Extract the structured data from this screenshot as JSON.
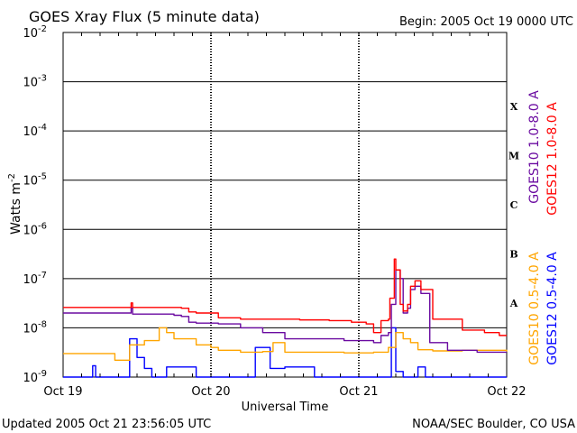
{
  "chart_data": {
    "type": "line",
    "title": "GOES Xray Flux (5 minute data)",
    "begin_label": "Begin:  2005 Oct 19 0000 UTC",
    "xlabel": "Universal Time",
    "ylabel": "Watts m",
    "ylabel_sup": "-2",
    "footer_left": "Updated 2005 Oct 21 23:56:05 UTC",
    "footer_right": "NOAA/SEC Boulder, CO USA",
    "y_scale": "log",
    "ylim": [
      1e-09,
      0.01
    ],
    "xlim": [
      0,
      3
    ],
    "x_ticks": [
      {
        "x": 0,
        "label": "Oct 19"
      },
      {
        "x": 1,
        "label": "Oct 20"
      },
      {
        "x": 2,
        "label": "Oct 21"
      },
      {
        "x": 3,
        "label": "Oct 22"
      }
    ],
    "y_ticks": [
      {
        "exp": -9,
        "base": "10",
        "sup": "-9"
      },
      {
        "exp": -8,
        "base": "10",
        "sup": "-8"
      },
      {
        "exp": -7,
        "base": "10",
        "sup": "-7"
      },
      {
        "exp": -6,
        "base": "10",
        "sup": "-6"
      },
      {
        "exp": -5,
        "base": "10",
        "sup": "-5"
      },
      {
        "exp": -4,
        "base": "10",
        "sup": "-4"
      },
      {
        "exp": -3,
        "base": "10",
        "sup": "-3"
      },
      {
        "exp": -2,
        "base": "10",
        "sup": "-2"
      }
    ],
    "flare_classes": [
      {
        "label": "A",
        "exp": -8
      },
      {
        "label": "B",
        "exp": -7
      },
      {
        "label": "C",
        "exp": -6
      },
      {
        "label": "M",
        "exp": -5
      },
      {
        "label": "X",
        "exp": -4
      }
    ],
    "grid": true,
    "legend_right": [
      {
        "name": "GOES12 1.0-8.0 A",
        "color": "#ff0000"
      },
      {
        "name": "GOES10 1.0-8.0 A",
        "color": "#6a0aa0"
      }
    ],
    "legend_bottom": [
      {
        "name": "GOES12 0.5-4.0 A",
        "color": "#0000ff"
      },
      {
        "name": "GOES10 0.5-4.0 A",
        "color": "#ffa500"
      }
    ],
    "series": [
      {
        "name": "GOES12 1.0-8.0 A",
        "color": "#ff0000",
        "x": [
          0,
          0.45,
          0.46,
          0.47,
          0.8,
          0.85,
          0.9,
          1.0,
          1.05,
          1.2,
          1.4,
          1.6,
          1.8,
          1.95,
          2.05,
          2.1,
          2.15,
          2.2,
          2.21,
          2.24,
          2.25,
          2.28,
          2.3,
          2.33,
          2.35,
          2.38,
          2.42,
          2.5,
          2.7,
          2.85,
          2.95,
          3.0
        ],
        "y": [
          2.6e-08,
          2.6e-08,
          3.2e-08,
          2.6e-08,
          2.5e-08,
          2.1e-08,
          2e-08,
          2e-08,
          1.6e-08,
          1.5e-08,
          1.5e-08,
          1.45e-08,
          1.4e-08,
          1.3e-08,
          1.2e-08,
          8e-09,
          1.4e-08,
          1.5e-08,
          4e-08,
          2.5e-07,
          1.5e-07,
          3e-08,
          2.2e-08,
          3e-08,
          7e-08,
          9e-08,
          6e-08,
          1.5e-08,
          9e-09,
          8e-09,
          7e-09,
          7e-09
        ]
      },
      {
        "name": "GOES10 1.0-8.0 A",
        "color": "#6a0aa0",
        "x": [
          0,
          0.45,
          0.46,
          0.47,
          0.75,
          0.8,
          0.85,
          0.9,
          1.0,
          1.05,
          1.2,
          1.35,
          1.5,
          1.7,
          1.9,
          2.05,
          2.1,
          2.15,
          2.2,
          2.22,
          2.25,
          2.28,
          2.3,
          2.33,
          2.35,
          2.38,
          2.42,
          2.48,
          2.6,
          2.8,
          3.0
        ],
        "y": [
          2e-08,
          2e-08,
          2.5e-08,
          1.9e-08,
          1.8e-08,
          1.7e-08,
          1.3e-08,
          1.25e-08,
          1.25e-08,
          1.2e-08,
          1e-08,
          8e-09,
          6e-09,
          6e-09,
          5.5e-09,
          5.5e-09,
          5e-09,
          7e-09,
          8e-09,
          3e-08,
          1.5e-07,
          1e-07,
          2e-08,
          2.5e-08,
          6e-08,
          7e-08,
          5e-08,
          5e-09,
          3.5e-09,
          3.2e-09,
          3.2e-09
        ]
      },
      {
        "name": "GOES10 0.5-4.0 A",
        "color": "#ffa500",
        "x": [
          0,
          0.2,
          0.3,
          0.35,
          0.45,
          0.55,
          0.6,
          0.65,
          0.7,
          0.75,
          0.9,
          1.0,
          1.05,
          1.2,
          1.35,
          1.42,
          1.5,
          1.7,
          1.9,
          2.0,
          2.1,
          2.2,
          2.25,
          2.3,
          2.35,
          2.4,
          2.5,
          2.7,
          3.0
        ],
        "y": [
          3e-09,
          3e-09,
          3e-09,
          2.2e-09,
          4.5e-09,
          5.5e-09,
          5.5e-09,
          1e-08,
          8e-09,
          6e-09,
          4.5e-09,
          4e-09,
          3.5e-09,
          3.2e-09,
          3.3e-09,
          5e-09,
          3.2e-09,
          3.2e-09,
          3.1e-09,
          3.1e-09,
          3.2e-09,
          4e-09,
          8e-09,
          6e-09,
          5e-09,
          3.6e-09,
          3.4e-09,
          3.5e-09,
          3.3e-09
        ]
      },
      {
        "name": "GOES12 0.5-4.0 A",
        "color": "#0000ff",
        "x": [
          0,
          0.15,
          0.2,
          0.22,
          0.3,
          0.35,
          0.4,
          0.45,
          0.5,
          0.55,
          0.6,
          0.7,
          0.8,
          0.9,
          1.0,
          1.2,
          1.3,
          1.4,
          1.5,
          1.6,
          1.7,
          1.8,
          1.9,
          2.0,
          2.15,
          2.2,
          2.22,
          2.25,
          2.3,
          2.35,
          2.4,
          2.45,
          2.5,
          3.0
        ],
        "y": [
          1e-09,
          1e-09,
          1.7e-09,
          1e-09,
          1e-09,
          1e-09,
          1e-09,
          6e-09,
          2.5e-09,
          1.5e-09,
          1e-09,
          1.6e-09,
          1.6e-09,
          1e-09,
          1e-09,
          1e-09,
          4e-09,
          1.5e-09,
          1.6e-09,
          1.6e-09,
          1e-09,
          1e-09,
          1e-09,
          1e-09,
          1e-09,
          1e-09,
          1e-08,
          1.3e-09,
          1e-09,
          1e-09,
          1.6e-09,
          1e-09,
          1e-09,
          1e-09
        ]
      }
    ]
  }
}
